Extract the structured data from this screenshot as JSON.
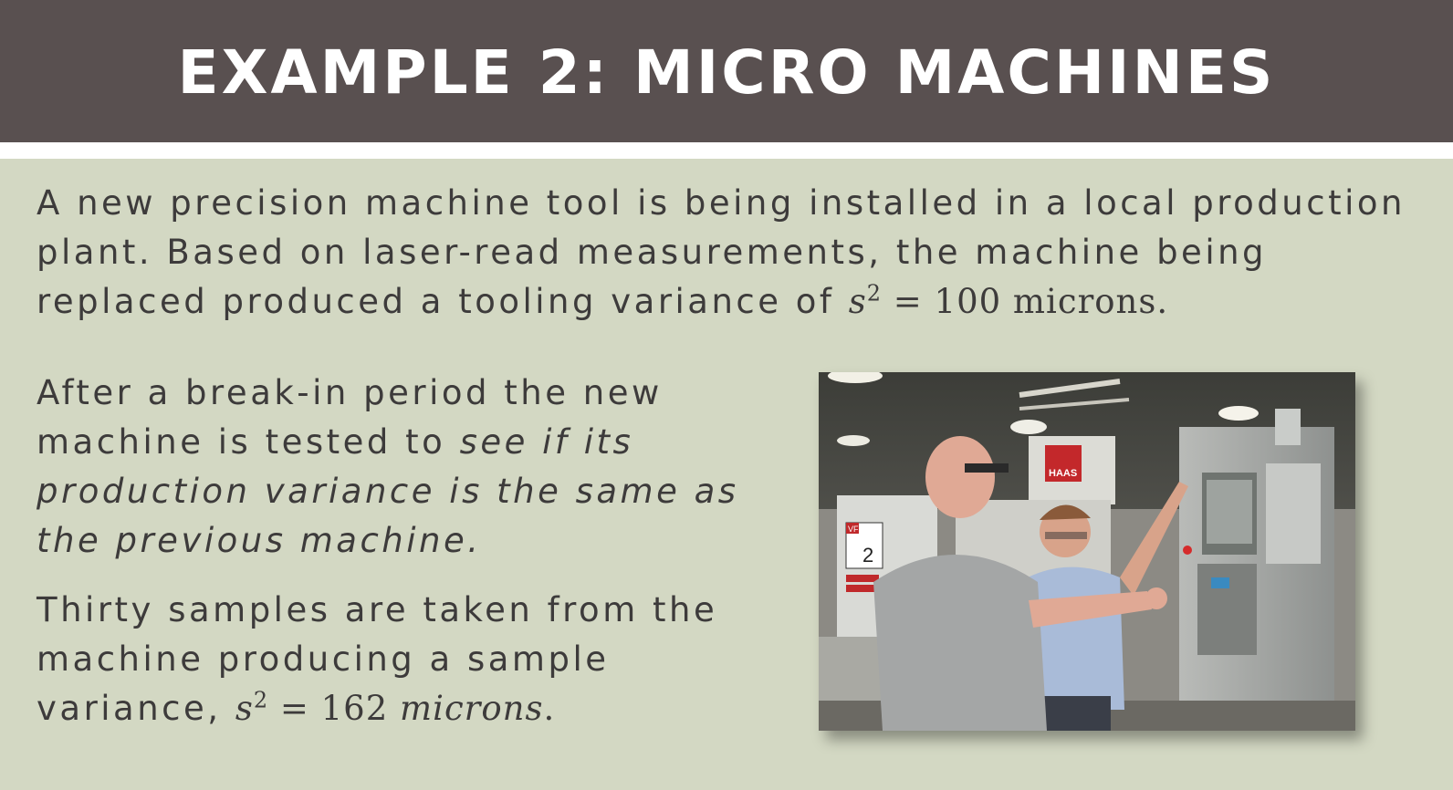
{
  "slide": {
    "title": "EXAMPLE 2: MICRO MACHINES"
  },
  "paragraph1": {
    "text": "A new precision machine tool is being installed in a local production plant. Based on laser-read measurements, the machine being replaced produced a tooling variance of ",
    "math_var": "s",
    "math_exp": "2",
    "math_rest": " = 100 microns."
  },
  "paragraph2": {
    "text_start": "After a break-in period the new machine is tested to ",
    "text_italic": "see if its production variance is the same as the previous machine."
  },
  "paragraph3": {
    "text": "Thirty samples are taken from the machine producing a sample variance, ",
    "math_var": "s",
    "math_exp": "2",
    "math_eq": " = 162 ",
    "math_unit": "microns",
    "math_end": "."
  },
  "photo": {
    "machine_number": "2",
    "machine_model_tag": "VF",
    "brand": "HAAS"
  },
  "colors": {
    "title_bar": "#595050",
    "background": "#d3d8c3",
    "text": "#3d3b3b"
  }
}
